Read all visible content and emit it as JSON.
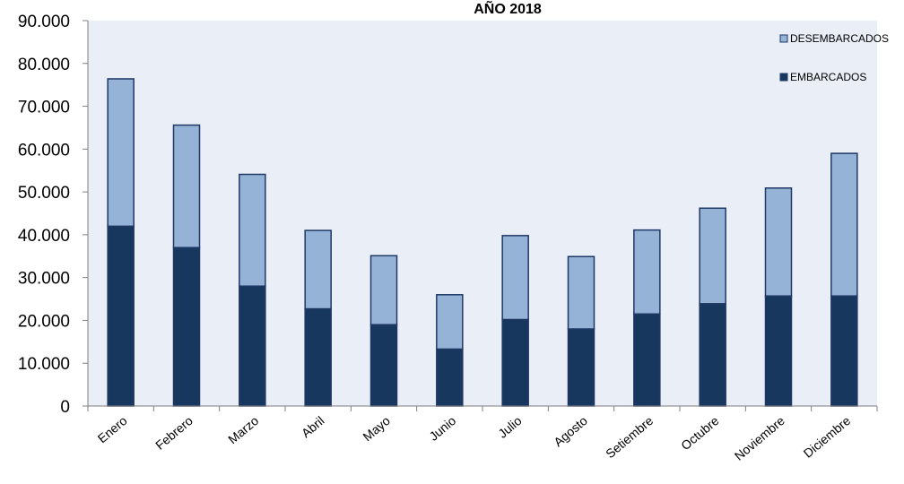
{
  "chart_data": {
    "type": "bar",
    "stacked": true,
    "title": "AÑO 2018",
    "xlabel": "",
    "ylabel": "",
    "ylim": [
      0,
      90000
    ],
    "yticks": [
      0,
      10000,
      20000,
      30000,
      40000,
      50000,
      60000,
      70000,
      80000,
      90000
    ],
    "ytick_labels": [
      "0",
      "10.000",
      "20.000",
      "30.000",
      "40.000",
      "50.000",
      "60.000",
      "70.000",
      "80.000",
      "90.000"
    ],
    "categories": [
      "Enero",
      "Febrero",
      "Marzo",
      "Abril",
      "Mayo",
      "Junio",
      "Julio",
      "Agosto",
      "Setiembre",
      "Octubre",
      "Noviembre",
      "Diciembre"
    ],
    "series": [
      {
        "name": "EMBARCADOS",
        "color": "#17375e",
        "values": [
          42000,
          37000,
          28000,
          22700,
          19000,
          13300,
          20200,
          18000,
          21500,
          23900,
          25700,
          25700
        ]
      },
      {
        "name": "DESEMBARCADOS",
        "color": "#95b3d7",
        "values": [
          34400,
          28600,
          26100,
          18300,
          16100,
          12700,
          19600,
          16900,
          19600,
          22300,
          25200,
          33300
        ]
      }
    ],
    "grid": false,
    "plot_background": "#eaeef7",
    "legend_position": "top-right"
  }
}
